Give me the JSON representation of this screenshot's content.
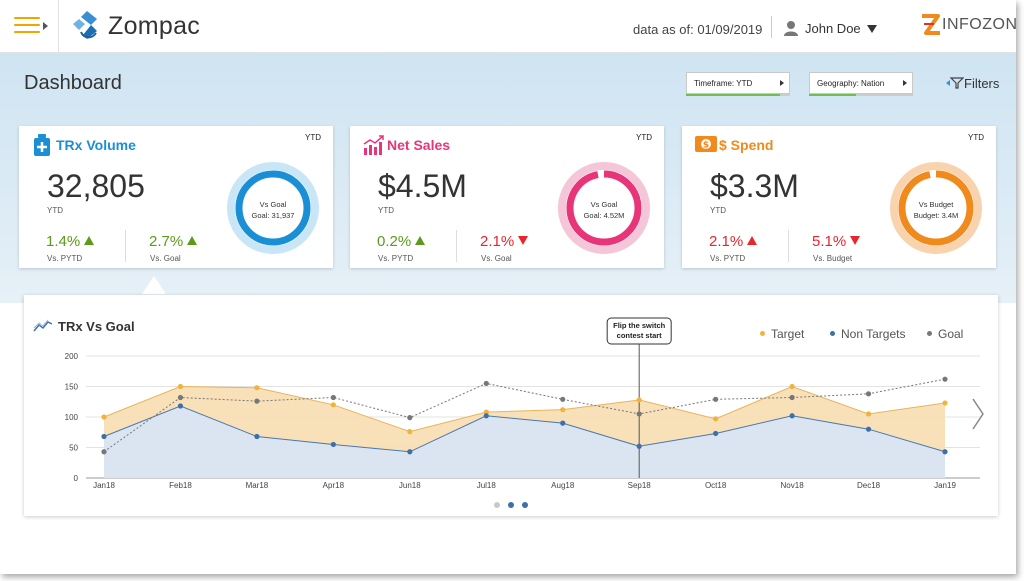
{
  "app": {
    "title": "Zompac"
  },
  "header": {
    "data_as_of": "data as of: 01/09/2019",
    "user_name": "John Doe",
    "brand": "INFOZONE"
  },
  "toolbar": {
    "page_title": "Dashboard",
    "timeframe": {
      "label": "Timeframe: YTD",
      "progress": 0.9
    },
    "geography": {
      "label": "Geography: Nation",
      "progress": 0.45
    },
    "filters_label": "Filters"
  },
  "kpis": [
    {
      "title": "TRx Volume",
      "color": "#1a8fd6",
      "tag": "YTD",
      "value": "32,805",
      "value_sub": "YTD",
      "stat1": "1.4%",
      "stat1_dir": "up",
      "stat1_color": "green",
      "stat1_label": "Vs. PYTD",
      "stat2": "2.7%",
      "stat2_dir": "up",
      "stat2_color": "green",
      "stat2_label": "Vs. Goal",
      "ring_title": "Vs Goal",
      "ring_sub": "Goal: 31,937",
      "ring_fill": 1.0,
      "ring_color": "#1a8fd6",
      "ring_track": "#c9e6f6"
    },
    {
      "title": "Net Sales",
      "color": "#e8357a",
      "tag": "YTD",
      "value": "$4.5M",
      "value_sub": "YTD",
      "stat1": "0.2%",
      "stat1_dir": "up",
      "stat1_color": "green",
      "stat1_label": "Vs. PYTD",
      "stat2": "2.1%",
      "stat2_dir": "down",
      "stat2_color": "red",
      "stat2_label": "Vs. Goal",
      "ring_title": "Vs Goal",
      "ring_sub": "Goal: 4.52M",
      "ring_fill": 0.97,
      "ring_color": "#e8357a",
      "ring_track": "#f4c6d8"
    },
    {
      "title": "$ Spend",
      "color": "#f08a1c",
      "tag": "YTD",
      "value": "$3.3M",
      "value_sub": "YTD",
      "stat1": "2.1%",
      "stat1_dir": "up",
      "stat1_color": "red",
      "stat1_label": "Vs. PYTD",
      "stat2": "5.1%",
      "stat2_dir": "down",
      "stat2_color": "red",
      "stat2_label": "Vs. Budget",
      "ring_title": "Vs Budget",
      "ring_sub": "Budget: 3.4M",
      "ring_fill": 0.97,
      "ring_color": "#f08a1c",
      "ring_track": "#f8d3ad"
    }
  ],
  "chart_panel": {
    "title": "TRx Vs Goal",
    "annotation": [
      "Flip the switch",
      "contest start"
    ],
    "legend": [
      {
        "name": "Target",
        "color": "#f2b33d"
      },
      {
        "name": "Non Targets",
        "color": "#3e6fa8"
      },
      {
        "name": "Goal",
        "color": "#777777"
      }
    ],
    "pager": {
      "pages": 3,
      "active": 1
    }
  },
  "chart_data": {
    "type": "area",
    "title": "TRx Vs Goal",
    "categories": [
      "Jan18",
      "Feb18",
      "Mar18",
      "Apr18",
      "Jun18",
      "Jul18",
      "Aug18",
      "Sep18",
      "Oct18",
      "Nov18",
      "Dec18",
      "Jan19"
    ],
    "ylim": [
      0,
      200
    ],
    "yticks": [
      0,
      50,
      100,
      150,
      200
    ],
    "grid": true,
    "legend_position": "top-right",
    "annotation_category": "Sep18",
    "series": [
      {
        "name": "Target",
        "color": "#f2b33d",
        "style": "area",
        "values": [
          100,
          150,
          148,
          120,
          76,
          108,
          112,
          128,
          97,
          150,
          105,
          123
        ]
      },
      {
        "name": "Non Targets",
        "color": "#3e6fa8",
        "style": "area",
        "values": [
          68,
          118,
          68,
          55,
          43,
          102,
          90,
          52,
          73,
          102,
          80,
          43
        ]
      },
      {
        "name": "Goal",
        "color": "#777777",
        "style": "dotted",
        "values": [
          43,
          132,
          126,
          132,
          99,
          155,
          129,
          105,
          129,
          132,
          138,
          162
        ]
      }
    ]
  },
  "colors": {
    "accent": "#f0a500",
    "band": "#d6e8f4",
    "green": "#5b9a1a",
    "red": "#e8262d"
  },
  "icons": [
    "menu-icon",
    "zompac-logo-icon",
    "user-icon",
    "caret-down-icon",
    "filter-icon",
    "trx-icon",
    "sales-icon",
    "spend-icon",
    "trend-icon",
    "chevron-right-icon"
  ]
}
